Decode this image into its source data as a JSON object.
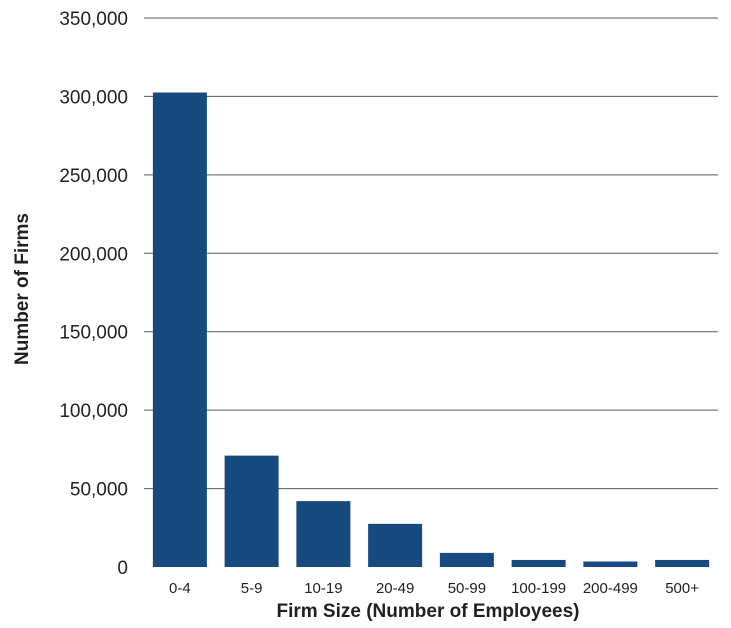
{
  "chart_data": {
    "type": "bar",
    "title": "",
    "xlabel": "Firm Size (Number of Employees)",
    "ylabel": "Number of Firms",
    "categories": [
      "0-4",
      "5-9",
      "10-19",
      "20-49",
      "50-99",
      "100-199",
      "200-499",
      "500+"
    ],
    "values": [
      302500,
      71000,
      42000,
      27500,
      9000,
      4500,
      3500,
      4500
    ],
    "ylim": [
      0,
      350000
    ],
    "yticks": [
      0,
      50000,
      100000,
      150000,
      200000,
      250000,
      300000,
      350000
    ],
    "ytick_labels": [
      "0",
      "50,000",
      "100,000",
      "150,000",
      "200,000",
      "250,000",
      "300,000",
      "350,000"
    ],
    "grid": true,
    "legend": "none",
    "colors": {
      "bar": "#174a7e",
      "grid": "#5a5a5a",
      "text": "#231f20"
    }
  }
}
